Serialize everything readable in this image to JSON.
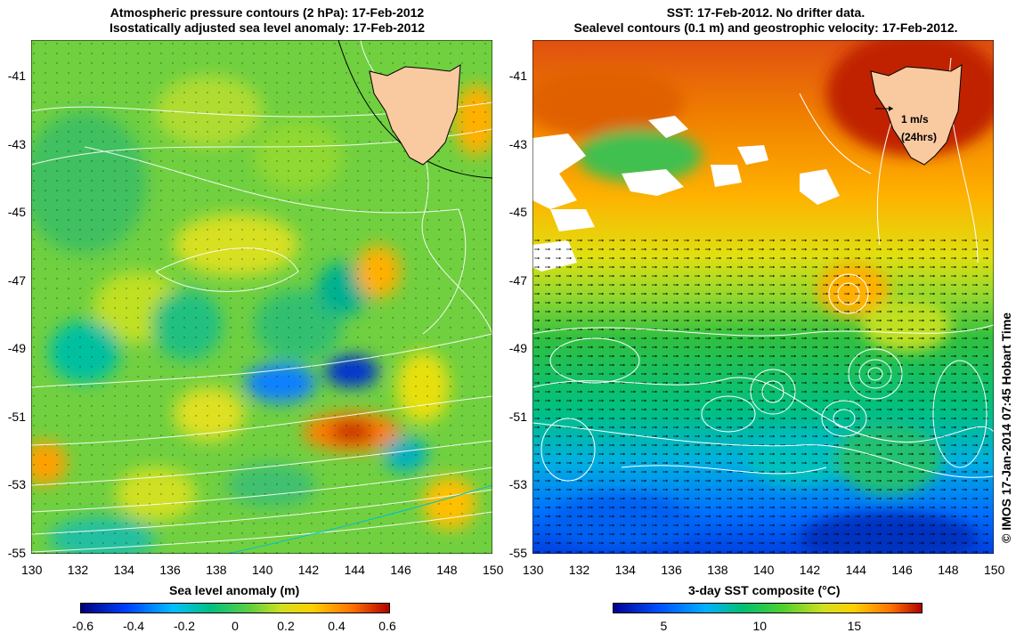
{
  "left_panel": {
    "title_line1": "Atmospheric pressure contours (2 hPa): 17-Feb-2012",
    "title_line2": "Isostatically adjusted sea level anomaly: 17-Feb-2012",
    "colorbar_label": "Sea level anomaly (m)",
    "colorbar_ticks": [
      "-0.6",
      "-0.4",
      "-0.2",
      "0",
      "0.2",
      "0.4",
      "0.6"
    ]
  },
  "right_panel": {
    "title_line1": "SST: 17-Feb-2012. No drifter data.",
    "title_line2": "Sealevel contours (0.1 m) and geostrophic velocity: 17-Feb-2012.",
    "colorbar_label": "3-day SST composite (°C)",
    "colorbar_ticks": [
      "5",
      "10",
      "15"
    ],
    "velocity_scale_label": "1 m/s",
    "velocity_scale_time": "(24hrs)"
  },
  "axes": {
    "lon_ticks": [
      "130",
      "132",
      "134",
      "136",
      "138",
      "140",
      "142",
      "144",
      "146",
      "148",
      "150"
    ],
    "lat_ticks": [
      "-41",
      "-43",
      "-45",
      "-47",
      "-49",
      "-51",
      "-53",
      "-55"
    ]
  },
  "credit": "© IMOS 17-Jan-2014 07:45 Hobart Time",
  "colors": {
    "land": "#f9c9a0",
    "sla_scale": [
      "#00007a",
      "#0040ff",
      "#00c0ff",
      "#00c080",
      "#50d040",
      "#c0e020",
      "#ffe000",
      "#ff8000",
      "#c00000"
    ],
    "sst_scale": [
      "#000090",
      "#0050ff",
      "#00b0ff",
      "#00c070",
      "#40d030",
      "#c0e020",
      "#ffd000",
      "#ff7000",
      "#b00000"
    ]
  }
}
